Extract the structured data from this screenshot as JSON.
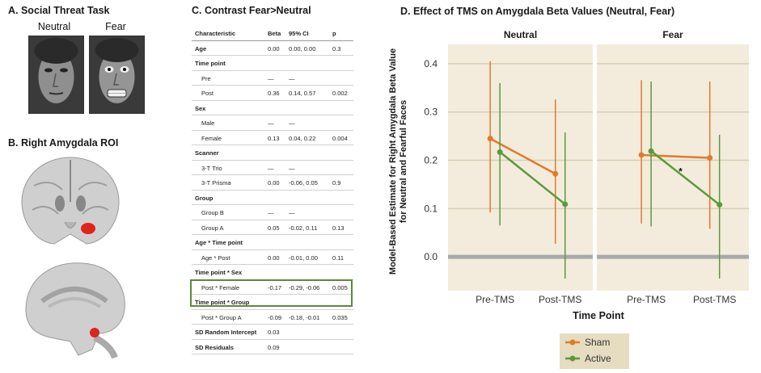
{
  "panelA": {
    "title": "A. Social Threat Task",
    "labels": [
      "Neutral",
      "Fear"
    ]
  },
  "panelB": {
    "title": "B. Right Amygdala ROI"
  },
  "panelC": {
    "title": "C. Contrast Fear>Neutral",
    "headers": [
      "Characteristic",
      "Beta",
      "95% CI",
      "p"
    ],
    "rows": [
      {
        "label": "Age",
        "beta": "0.00",
        "ci": "0.00, 0.00",
        "p": "0.3",
        "bold": true,
        "indent": false
      },
      {
        "label": "Time point",
        "beta": "",
        "ci": "",
        "p": "",
        "bold": true,
        "indent": false
      },
      {
        "label": "Pre",
        "beta": "—",
        "ci": "—",
        "p": "",
        "bold": false,
        "indent": true
      },
      {
        "label": "Post",
        "beta": "0.36",
        "ci": "0.14, 0.57",
        "p": "0.002",
        "bold": false,
        "indent": true
      },
      {
        "label": "Sex",
        "beta": "",
        "ci": "",
        "p": "",
        "bold": true,
        "indent": false
      },
      {
        "label": "Male",
        "beta": "—",
        "ci": "—",
        "p": "",
        "bold": false,
        "indent": true
      },
      {
        "label": "Female",
        "beta": "0.13",
        "ci": "0.04, 0.22",
        "p": "0.004",
        "bold": false,
        "indent": true
      },
      {
        "label": "Scanner",
        "beta": "",
        "ci": "",
        "p": "",
        "bold": true,
        "indent": false
      },
      {
        "label": "3-T Trio",
        "beta": "—",
        "ci": "—",
        "p": "",
        "bold": false,
        "indent": true
      },
      {
        "label": "3-T Prisma",
        "beta": "0.00",
        "ci": "-0.06, 0.05",
        "p": "0.9",
        "bold": false,
        "indent": true
      },
      {
        "label": "Group",
        "beta": "",
        "ci": "",
        "p": "",
        "bold": true,
        "indent": false
      },
      {
        "label": "Group B",
        "beta": "—",
        "ci": "—",
        "p": "",
        "bold": false,
        "indent": true
      },
      {
        "label": "Group A",
        "beta": "0.05",
        "ci": "-0.02, 0.11",
        "p": "0.13",
        "bold": false,
        "indent": true
      },
      {
        "label": "Age * Time point",
        "beta": "",
        "ci": "",
        "p": "",
        "bold": true,
        "indent": false
      },
      {
        "label": "Age * Post",
        "beta": "0.00",
        "ci": "-0.01, 0.00",
        "p": "0.11",
        "bold": false,
        "indent": true
      },
      {
        "label": "Time point * Sex",
        "beta": "",
        "ci": "",
        "p": "",
        "bold": true,
        "indent": false
      },
      {
        "label": "Post * Female",
        "beta": "-0.17",
        "ci": "-0.29, -0.06",
        "p": "0.005",
        "bold": false,
        "indent": true
      },
      {
        "label": "Time point * Group",
        "beta": "",
        "ci": "",
        "p": "",
        "bold": true,
        "indent": false
      },
      {
        "label": "Post * Group A",
        "beta": "-0.09",
        "ci": "-0.18, -0.01",
        "p": "0.035",
        "bold": false,
        "indent": true
      },
      {
        "label": "SD Random Intercept",
        "beta": "0.03",
        "ci": "",
        "p": "",
        "bold": true,
        "indent": false
      },
      {
        "label": "SD Residuals",
        "beta": "0.09",
        "ci": "",
        "p": "",
        "bold": true,
        "indent": false
      }
    ]
  },
  "chart_data": {
    "type": "line",
    "title": "D. Effect of TMS on Amygdala Beta Values (Neutral, Fear)",
    "xlabel": "Time Point",
    "ylabel_line1": "Model-Based Estimate for Right Amygdala Beta Value",
    "ylabel_line2": "for Neutral and Fearful Faces",
    "ylim": [
      -0.07,
      0.44
    ],
    "yticks": [
      "0.0",
      "0.1",
      "0.2",
      "0.3",
      "0.4"
    ],
    "ytick_values": [
      0.0,
      0.1,
      0.2,
      0.3,
      0.4
    ],
    "categories": [
      "Pre-TMS",
      "Post-TMS"
    ],
    "legend_position": "bottom-center",
    "colors": {
      "Sham": "#e07b2a",
      "Active": "#5a9a3c",
      "panel_bg": "#f3ecdc",
      "grid": "#d9ceb4",
      "zero_line": "#a9a9a9",
      "legend_bg": "#e6dcc0"
    },
    "facets": [
      {
        "name": "Neutral",
        "annotation": "",
        "series": [
          {
            "name": "Sham",
            "values": [
              0.245,
              0.172
            ],
            "lower": [
              0.092,
              0.027
            ],
            "upper": [
              0.405,
              0.326
            ]
          },
          {
            "name": "Active",
            "values": [
              0.217,
              0.109
            ],
            "lower": [
              0.065,
              -0.045
            ],
            "upper": [
              0.36,
              0.258
            ]
          }
        ]
      },
      {
        "name": "Fear",
        "annotation": "*",
        "series": [
          {
            "name": "Sham",
            "values": [
              0.211,
              0.205
            ],
            "lower": [
              0.069,
              0.058
            ],
            "upper": [
              0.366,
              0.363
            ]
          },
          {
            "name": "Active",
            "values": [
              0.219,
              0.108
            ],
            "lower": [
              0.063,
              -0.045
            ],
            "upper": [
              0.363,
              0.253
            ]
          }
        ]
      }
    ]
  }
}
